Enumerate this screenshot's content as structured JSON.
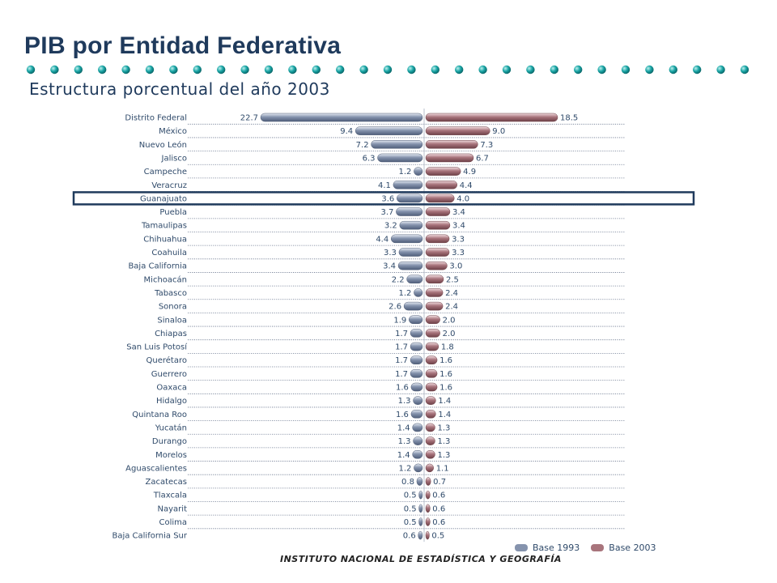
{
  "header": {
    "title": "PIB por Entidad Federativa",
    "subtitle": "Estructura porcentual del año 2003"
  },
  "colors": {
    "title": "#1f3a5c",
    "dots": "#1aa6a6",
    "base1993": "#8593ad",
    "base2003": "#a8747c",
    "highlight": "#1f3a5c"
  },
  "chart_data": {
    "type": "bar",
    "orientation": "horizontal-diverging",
    "categories": [
      "Distrito Federal",
      "México",
      "Nuevo León",
      "Jalisco",
      "Campeche",
      "Veracruz",
      "Guanajuato",
      "Puebla",
      "Tamaulipas",
      "Chihuahua",
      "Coahuila",
      "Baja California",
      "Michoacán",
      "Tabasco",
      "Sonora",
      "Sinaloa",
      "Chiapas",
      "San Luis Potosí",
      "Querétaro",
      "Guerrero",
      "Oaxaca",
      "Hidalgo",
      "Quintana Roo",
      "Yucatán",
      "Durango",
      "Morelos",
      "Aguascalientes",
      "Zacatecas",
      "Tlaxcala",
      "Nayarit",
      "Colima",
      "Baja California Sur"
    ],
    "series": [
      {
        "name": "Base 1993",
        "values": [
          22.7,
          9.4,
          7.2,
          6.3,
          1.2,
          4.1,
          3.6,
          3.7,
          3.2,
          4.4,
          3.3,
          3.4,
          2.2,
          1.2,
          2.6,
          1.9,
          1.7,
          1.7,
          1.7,
          1.7,
          1.6,
          1.3,
          1.6,
          1.4,
          1.3,
          1.4,
          1.2,
          0.8,
          0.5,
          0.5,
          0.5,
          0.6
        ]
      },
      {
        "name": "Base 2003",
        "values": [
          18.5,
          9.0,
          7.3,
          6.7,
          4.9,
          4.4,
          4.0,
          3.4,
          3.4,
          3.3,
          3.3,
          3.0,
          2.5,
          2.4,
          2.4,
          2.0,
          2.0,
          1.8,
          1.6,
          1.6,
          1.6,
          1.4,
          1.4,
          1.3,
          1.3,
          1.3,
          1.1,
          0.7,
          0.6,
          0.6,
          0.6,
          0.5
        ]
      }
    ],
    "highlight_category": "Guanajuato",
    "legend": "bottom-right"
  },
  "footer": "INSTITUTO NACIONAL DE ESTADÍSTICA Y GEOGRAFÍA"
}
